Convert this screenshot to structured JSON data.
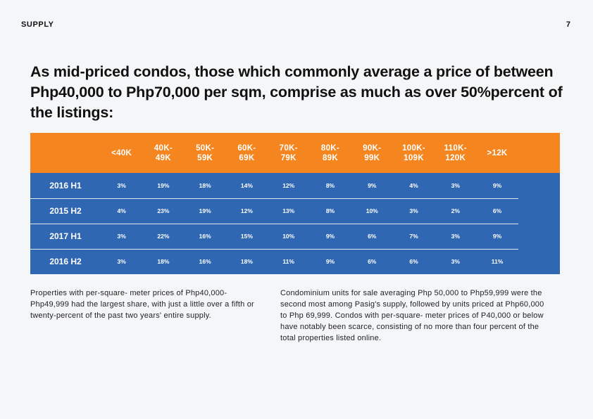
{
  "header": {
    "section": "SUPPLY",
    "page_number": "7"
  },
  "headline": "As mid-priced condos, those which commonly average a price of between Php40,000 to Php70,000 per sqm, comprise as much as over 50%percent of the listings:",
  "table": {
    "columns": [
      "<40K",
      "40K-\n49K",
      "50K-\n59K",
      "60K-\n69K",
      "70K-\n79K",
      "80K-\n89K",
      "90K-\n99K",
      "100K-\n109K",
      "110K-\n120K",
      ">12K"
    ],
    "rows": [
      {
        "label": "2016 H1",
        "values": [
          "3%",
          "19%",
          "18%",
          "14%",
          "12%",
          "8%",
          "9%",
          "4%",
          "3%",
          "9%"
        ]
      },
      {
        "label": "2015 H2",
        "values": [
          "4%",
          "23%",
          "19%",
          "12%",
          "13%",
          "8%",
          "10%",
          "3%",
          "2%",
          "6%"
        ]
      },
      {
        "label": "2017 H1",
        "values": [
          "3%",
          "22%",
          "16%",
          "15%",
          "10%",
          "9%",
          "6%",
          "7%",
          "3%",
          "9%"
        ]
      },
      {
        "label": "2016 H2",
        "values": [
          "3%",
          "18%",
          "16%",
          "18%",
          "11%",
          "9%",
          "6%",
          "6%",
          "3%",
          "11%"
        ]
      }
    ]
  },
  "paragraphs": {
    "left": "Properties with per-square- meter prices of Php40,000-Php49,999 had the largest share, with just a little over a fifth or twenty-percent of the past two years' entire supply.",
    "right": "Condominium units for sale averaging Php 50,000 to Php59,999 were the second most among Pasig's supply, followed by units priced at Php60,000 to Php 69,999. Condos with per-square- meter prices of P40,000 or below have notably been scarce, consisting of no more than four percent of the total properties listed online."
  },
  "colors": {
    "header_orange": "#f5861f",
    "body_blue": "#2f67b3",
    "background": "#f5f6f8"
  }
}
